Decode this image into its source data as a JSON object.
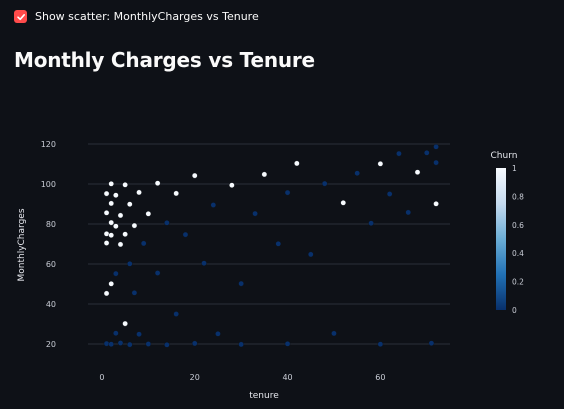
{
  "checkbox": {
    "label": "Show scatter: MonthlyCharges vs Tenure",
    "checked": true,
    "color": "#ff4b4b"
  },
  "page": {
    "title": "Monthly Charges vs Tenure",
    "background": "#0e1117"
  },
  "chart_data": {
    "type": "scatter",
    "title": "",
    "xlabel": "tenure",
    "ylabel": "MonthlyCharges",
    "xlim": [
      -3,
      75
    ],
    "ylim": [
      17,
      122
    ],
    "x_ticks": [
      0,
      20,
      40,
      60
    ],
    "y_ticks": [
      20,
      40,
      60,
      80,
      100,
      120
    ],
    "grid": true,
    "colorbar": {
      "title": "Churn",
      "range": [
        0,
        1
      ],
      "ticks": [
        0,
        0.2,
        0.4,
        0.6,
        0.8,
        1
      ],
      "tick_labels": [
        "0",
        "0.2",
        "0.4",
        "0.6",
        "0.8",
        "1"
      ],
      "colors": [
        "#08306b",
        "#2171b5",
        "#6baed6",
        "#c6dbef",
        "#f7fbff"
      ]
    },
    "points": [
      {
        "x": 1,
        "y": 20.2,
        "churn": 0
      },
      {
        "x": 1,
        "y": 45.3,
        "churn": 1
      },
      {
        "x": 1,
        "y": 70.5,
        "churn": 1
      },
      {
        "x": 1,
        "y": 75.1,
        "churn": 1
      },
      {
        "x": 1,
        "y": 85.6,
        "churn": 1
      },
      {
        "x": 1,
        "y": 95.2,
        "churn": 1
      },
      {
        "x": 2,
        "y": 19.9,
        "churn": 0
      },
      {
        "x": 2,
        "y": 50.1,
        "churn": 1
      },
      {
        "x": 2,
        "y": 74.4,
        "churn": 1
      },
      {
        "x": 2,
        "y": 80.7,
        "churn": 1
      },
      {
        "x": 2,
        "y": 90.3,
        "churn": 1
      },
      {
        "x": 2,
        "y": 100.1,
        "churn": 1
      },
      {
        "x": 3,
        "y": 25.4,
        "churn": 0
      },
      {
        "x": 3,
        "y": 55.2,
        "churn": 0
      },
      {
        "x": 3,
        "y": 78.9,
        "churn": 1
      },
      {
        "x": 3,
        "y": 94.4,
        "churn": 1
      },
      {
        "x": 4,
        "y": 20.5,
        "churn": 0
      },
      {
        "x": 4,
        "y": 69.8,
        "churn": 1
      },
      {
        "x": 4,
        "y": 84.3,
        "churn": 1
      },
      {
        "x": 5,
        "y": 30.2,
        "churn": 1
      },
      {
        "x": 5,
        "y": 74.9,
        "churn": 1
      },
      {
        "x": 5,
        "y": 99.6,
        "churn": 1
      },
      {
        "x": 6,
        "y": 19.7,
        "churn": 0
      },
      {
        "x": 6,
        "y": 60.1,
        "churn": 0
      },
      {
        "x": 6,
        "y": 89.9,
        "churn": 1
      },
      {
        "x": 7,
        "y": 45.6,
        "churn": 0
      },
      {
        "x": 7,
        "y": 79.2,
        "churn": 1
      },
      {
        "x": 8,
        "y": 24.9,
        "churn": 0
      },
      {
        "x": 8,
        "y": 95.8,
        "churn": 1
      },
      {
        "x": 9,
        "y": 70.3,
        "churn": 0
      },
      {
        "x": 10,
        "y": 20.0,
        "churn": 0
      },
      {
        "x": 10,
        "y": 85.1,
        "churn": 1
      },
      {
        "x": 12,
        "y": 55.5,
        "churn": 0
      },
      {
        "x": 12,
        "y": 100.4,
        "churn": 1
      },
      {
        "x": 14,
        "y": 19.6,
        "churn": 0
      },
      {
        "x": 14,
        "y": 80.6,
        "churn": 0
      },
      {
        "x": 16,
        "y": 35.0,
        "churn": 0
      },
      {
        "x": 16,
        "y": 95.3,
        "churn": 1
      },
      {
        "x": 18,
        "y": 74.7,
        "churn": 0
      },
      {
        "x": 20,
        "y": 20.3,
        "churn": 0
      },
      {
        "x": 20,
        "y": 104.2,
        "churn": 1
      },
      {
        "x": 22,
        "y": 60.4,
        "churn": 0
      },
      {
        "x": 24,
        "y": 89.5,
        "churn": 0
      },
      {
        "x": 25,
        "y": 25.1,
        "churn": 0
      },
      {
        "x": 28,
        "y": 99.4,
        "churn": 1
      },
      {
        "x": 30,
        "y": 50.2,
        "churn": 0
      },
      {
        "x": 30,
        "y": 19.8,
        "churn": 0
      },
      {
        "x": 33,
        "y": 85.2,
        "churn": 0
      },
      {
        "x": 35,
        "y": 104.8,
        "churn": 1
      },
      {
        "x": 38,
        "y": 70.1,
        "churn": 0
      },
      {
        "x": 40,
        "y": 20.1,
        "churn": 0
      },
      {
        "x": 40,
        "y": 95.7,
        "churn": 0
      },
      {
        "x": 42,
        "y": 110.3,
        "churn": 1
      },
      {
        "x": 45,
        "y": 64.8,
        "churn": 0
      },
      {
        "x": 48,
        "y": 100.2,
        "churn": 0
      },
      {
        "x": 50,
        "y": 25.3,
        "churn": 0
      },
      {
        "x": 52,
        "y": 90.6,
        "churn": 1
      },
      {
        "x": 55,
        "y": 105.4,
        "churn": 0
      },
      {
        "x": 58,
        "y": 80.4,
        "churn": 0
      },
      {
        "x": 60,
        "y": 19.9,
        "churn": 0
      },
      {
        "x": 60,
        "y": 110.1,
        "churn": 1
      },
      {
        "x": 62,
        "y": 95.0,
        "churn": 0
      },
      {
        "x": 64,
        "y": 115.2,
        "churn": 0
      },
      {
        "x": 66,
        "y": 85.8,
        "churn": 0
      },
      {
        "x": 68,
        "y": 105.9,
        "churn": 1
      },
      {
        "x": 70,
        "y": 115.6,
        "churn": 0
      },
      {
        "x": 71,
        "y": 20.4,
        "churn": 0
      },
      {
        "x": 72,
        "y": 110.7,
        "churn": 0
      },
      {
        "x": 72,
        "y": 90.1,
        "churn": 1
      },
      {
        "x": 72,
        "y": 118.6,
        "churn": 0
      }
    ]
  }
}
